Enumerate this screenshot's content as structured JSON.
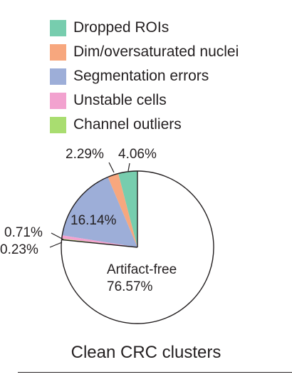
{
  "chart_data": {
    "type": "pie",
    "title": "",
    "legend": [
      {
        "label": "Dropped ROIs",
        "color": "#77cdae"
      },
      {
        "label": "Dim/oversaturated nuclei",
        "color": "#f7a77e"
      },
      {
        "label": "Segmentation errors",
        "color": "#9daed8"
      },
      {
        "label": "Unstable cells",
        "color": "#f2a2cf"
      },
      {
        "label": "Channel outliers",
        "color": "#a9dd70"
      }
    ],
    "slices": [
      {
        "label": "Dropped ROIs",
        "value": 4.06,
        "value_label": "4.06%",
        "color": "#77cdae"
      },
      {
        "label": "Dim/oversaturated nuclei",
        "value": 2.29,
        "value_label": "2.29%",
        "color": "#f7a77e"
      },
      {
        "label": "Segmentation errors",
        "value": 16.14,
        "value_label": "16.14%",
        "color": "#9daed8"
      },
      {
        "label": "Unstable cells",
        "value": 0.71,
        "value_label": "0.71%",
        "color": "#f2a2cf"
      },
      {
        "label": "Channel outliers",
        "value": 0.23,
        "value_label": "0.23%",
        "color": "#a9dd70"
      },
      {
        "label": "Artifact-free",
        "value": 76.57,
        "value_label": "76.57%",
        "color": "#ffffff"
      }
    ],
    "start_angle": "12 o'clock, counterclockwise",
    "caption": "Clean CRC clusters"
  }
}
